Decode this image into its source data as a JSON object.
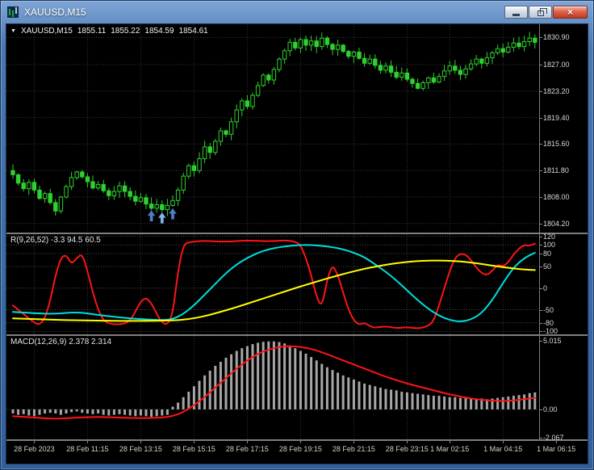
{
  "window": {
    "title": "XAUUSD,M15",
    "controls": {
      "minimize": "minimize",
      "restore": "restore",
      "close": "close"
    }
  },
  "main_chart": {
    "dropdown_marker": "▼",
    "symbol_label": "XAUUSD,M15",
    "open": "1855.11",
    "high": "1855.22",
    "low": "1854.59",
    "close": "1854.61",
    "price_axis_labels": [
      "1830.90",
      "1827.00",
      "1823.20",
      "1819.40",
      "1815.60",
      "1811.80",
      "1808.00",
      "1804.20"
    ]
  },
  "indicator_panel": {
    "label": "R(9,26,52) -3.3 94.5 60.5",
    "axis_labels": [
      "120",
      "100",
      "80",
      "50",
      "0",
      "-50",
      "-80",
      "-100"
    ]
  },
  "macd_panel": {
    "label": "MACD(12,26,9) 2.378 2.314",
    "axis_labels": [
      "5.015",
      "0.00",
      "-2.067"
    ]
  },
  "time_axis": {
    "labels": [
      {
        "label": "28 Feb 2023",
        "i": 4
      },
      {
        "label": "28 Feb 11:15",
        "i": 14
      },
      {
        "label": "28 Feb 13:15",
        "i": 24
      },
      {
        "label": "28 Feb 15:15",
        "i": 34
      },
      {
        "label": "28 Feb 17:15",
        "i": 44
      },
      {
        "label": "28 Feb 19:15",
        "i": 54
      },
      {
        "label": "28 Feb 21:15",
        "i": 64
      },
      {
        "label": "28 Feb 23:15",
        "i": 74
      },
      {
        "label": "1 Mar 02:15",
        "i": 82
      },
      {
        "label": "1 Mar 04:15",
        "i": 92
      },
      {
        "label": "1 Mar 06:15",
        "i": 102
      }
    ]
  },
  "colors": {
    "background": "#000000",
    "candle": "#2fd12f",
    "grid": "#383838",
    "level": "#4a4a4a",
    "separator": "#7e7e7e",
    "axis_text": "#d9d9d9",
    "histogram": "#a6a6a6",
    "signal": "#ff1414"
  },
  "chart_data": [
    {
      "type": "candlestick",
      "title": "XAUUSD M15 price",
      "ylim": [
        1802.9,
        1832.8
      ],
      "first_open": 1811.8,
      "closes": [
        1811.2,
        1810.0,
        1809.2,
        1810.1,
        1809.0,
        1807.8,
        1808.5,
        1807.2,
        1806.0,
        1808.0,
        1809.5,
        1810.8,
        1811.6,
        1810.9,
        1810.2,
        1809.3,
        1809.8,
        1808.9,
        1808.2,
        1808.8,
        1809.6,
        1808.8,
        1808.1,
        1807.4,
        1807.9,
        1807.0,
        1806.4,
        1806.9,
        1806.2,
        1806.8,
        1807.5,
        1809.0,
        1811.0,
        1812.5,
        1811.8,
        1813.5,
        1815.2,
        1814.4,
        1816.0,
        1817.5,
        1817.0,
        1818.8,
        1820.5,
        1821.8,
        1821.0,
        1822.6,
        1824.0,
        1825.5,
        1824.8,
        1826.3,
        1827.8,
        1829.0,
        1830.2,
        1829.4,
        1830.6,
        1829.8,
        1830.4,
        1829.6,
        1830.8,
        1829.9,
        1829.2,
        1829.8,
        1828.9,
        1828.2,
        1828.8,
        1827.9,
        1827.2,
        1827.8,
        1826.9,
        1826.2,
        1826.8,
        1825.9,
        1825.2,
        1825.8,
        1824.9,
        1824.3,
        1823.6,
        1824.4,
        1825.1,
        1824.5,
        1825.3,
        1826.1,
        1826.8,
        1826.2,
        1825.6,
        1826.4,
        1827.1,
        1827.8,
        1827.2,
        1828.0,
        1828.7,
        1829.3,
        1828.8,
        1829.5,
        1830.1,
        1829.6,
        1830.3,
        1830.8,
        1830.2
      ],
      "markers": [
        {
          "shape": "up-arrow",
          "candle_index": 26,
          "price": 1805.3,
          "color": "#4f7fc0"
        },
        {
          "shape": "up-arrow",
          "candle_index": 28,
          "price": 1805.0,
          "color": "#8ab4e8"
        },
        {
          "shape": "up-arrow",
          "candle_index": 30,
          "price": 1805.6,
          "color": "#4f7fc0"
        }
      ]
    },
    {
      "type": "line",
      "title": "R(9,26,52)",
      "current_values": "-3.3 94.5 60.5",
      "ylim": [
        -107,
        125
      ],
      "levels": [
        120,
        100,
        80,
        50,
        0,
        -50,
        -80,
        -100
      ],
      "series": [
        {
          "name": "r-fast",
          "color": "#ff1414",
          "width": 2,
          "points": [
            [
              0,
              -40
            ],
            [
              2,
              -60
            ],
            [
              4,
              -80
            ],
            [
              5,
              -85
            ],
            [
              6,
              -70
            ],
            [
              7,
              -30
            ],
            [
              8,
              30
            ],
            [
              9,
              70
            ],
            [
              10,
              78
            ],
            [
              11,
              55
            ],
            [
              12,
              70
            ],
            [
              13,
              80
            ],
            [
              14,
              40
            ],
            [
              15,
              -10
            ],
            [
              16,
              -50
            ],
            [
              17,
              -75
            ],
            [
              18,
              -82
            ],
            [
              20,
              -85
            ],
            [
              22,
              -78
            ],
            [
              24,
              -30
            ],
            [
              25,
              -22
            ],
            [
              26,
              -35
            ],
            [
              27,
              -60
            ],
            [
              28,
              -80
            ],
            [
              29,
              -85
            ],
            [
              30,
              -60
            ],
            [
              31,
              40
            ],
            [
              32,
              100
            ],
            [
              33,
              107
            ],
            [
              36,
              110
            ],
            [
              40,
              107
            ],
            [
              44,
              111
            ],
            [
              48,
              108
            ],
            [
              51,
              111
            ],
            [
              53,
              108
            ],
            [
              54,
              100
            ],
            [
              55,
              70
            ],
            [
              56,
              30
            ],
            [
              57,
              -20
            ],
            [
              58,
              -45
            ],
            [
              59,
              20
            ],
            [
              60,
              55
            ],
            [
              61,
              30
            ],
            [
              62,
              -10
            ],
            [
              63,
              -50
            ],
            [
              64,
              -75
            ],
            [
              65,
              -85
            ],
            [
              66,
              -80
            ],
            [
              67,
              -88
            ],
            [
              68,
              -92
            ],
            [
              70,
              -88
            ],
            [
              72,
              -93
            ],
            [
              74,
              -90
            ],
            [
              76,
              -94
            ],
            [
              78,
              -88
            ],
            [
              79,
              -75
            ],
            [
              80,
              -40
            ],
            [
              81,
              0
            ],
            [
              82,
              40
            ],
            [
              83,
              70
            ],
            [
              84,
              80
            ],
            [
              85,
              78
            ],
            [
              86,
              65
            ],
            [
              87,
              48
            ],
            [
              88,
              35
            ],
            [
              89,
              30
            ],
            [
              90,
              40
            ],
            [
              91,
              55
            ],
            [
              92,
              50
            ],
            [
              93,
              60
            ],
            [
              94,
              78
            ],
            [
              95,
              92
            ],
            [
              96,
              100
            ],
            [
              97,
              98
            ],
            [
              98,
              103
            ]
          ]
        },
        {
          "name": "r-mid",
          "color": "#00dddd",
          "width": 2,
          "points": [
            [
              0,
              -55
            ],
            [
              4,
              -58
            ],
            [
              8,
              -60
            ],
            [
              12,
              -55
            ],
            [
              16,
              -62
            ],
            [
              20,
              -68
            ],
            [
              24,
              -72
            ],
            [
              28,
              -74
            ],
            [
              30,
              -72
            ],
            [
              32,
              -60
            ],
            [
              34,
              -40
            ],
            [
              36,
              -15
            ],
            [
              38,
              10
            ],
            [
              40,
              35
            ],
            [
              42,
              55
            ],
            [
              44,
              70
            ],
            [
              46,
              82
            ],
            [
              48,
              90
            ],
            [
              50,
              95
            ],
            [
              52,
              98
            ],
            [
              54,
              100
            ],
            [
              56,
              100
            ],
            [
              58,
              98
            ],
            [
              60,
              95
            ],
            [
              62,
              90
            ],
            [
              64,
              82
            ],
            [
              66,
              72
            ],
            [
              68,
              55
            ],
            [
              70,
              38
            ],
            [
              72,
              18
            ],
            [
              74,
              -5
            ],
            [
              76,
              -28
            ],
            [
              78,
              -48
            ],
            [
              80,
              -64
            ],
            [
              82,
              -74
            ],
            [
              84,
              -78
            ],
            [
              86,
              -73
            ],
            [
              88,
              -58
            ],
            [
              90,
              -28
            ],
            [
              92,
              12
            ],
            [
              94,
              48
            ],
            [
              96,
              70
            ],
            [
              98,
              82
            ]
          ]
        },
        {
          "name": "r-slow",
          "color": "#ffff00",
          "width": 2,
          "points": [
            [
              0,
              -70
            ],
            [
              5,
              -72
            ],
            [
              10,
              -74
            ],
            [
              15,
              -75
            ],
            [
              20,
              -76
            ],
            [
              25,
              -76
            ],
            [
              30,
              -75
            ],
            [
              33,
              -72
            ],
            [
              36,
              -65
            ],
            [
              39,
              -55
            ],
            [
              42,
              -44
            ],
            [
              45,
              -32
            ],
            [
              48,
              -20
            ],
            [
              51,
              -8
            ],
            [
              54,
              4
            ],
            [
              57,
              15
            ],
            [
              60,
              26
            ],
            [
              63,
              36
            ],
            [
              66,
              45
            ],
            [
              69,
              52
            ],
            [
              72,
              58
            ],
            [
              75,
              62
            ],
            [
              78,
              64
            ],
            [
              81,
              64
            ],
            [
              84,
              62
            ],
            [
              87,
              58
            ],
            [
              90,
              52
            ],
            [
              93,
              47
            ],
            [
              96,
              43
            ],
            [
              98,
              42
            ]
          ]
        }
      ]
    },
    {
      "type": "macd",
      "title": "MACD(12,26,9)",
      "current_values": "2.378 2.314",
      "ylim": [
        -2.2,
        5.4
      ],
      "levels": [
        0
      ],
      "histogram": [
        -0.3,
        -0.4,
        -0.35,
        -0.45,
        -0.5,
        -0.4,
        -0.3,
        -0.25,
        -0.3,
        -0.4,
        -0.3,
        -0.2,
        -0.15,
        -0.25,
        -0.3,
        -0.35,
        -0.3,
        -0.4,
        -0.45,
        -0.4,
        -0.35,
        -0.4,
        -0.45,
        -0.5,
        -0.45,
        -0.5,
        -0.55,
        -0.5,
        -0.45,
        -0.4,
        0.2,
        0.5,
        0.9,
        1.3,
        1.7,
        2.1,
        2.5,
        2.85,
        3.2,
        3.5,
        3.8,
        4.05,
        4.3,
        4.5,
        4.65,
        4.8,
        4.9,
        4.97,
        5.0,
        5.0,
        4.95,
        4.85,
        4.7,
        4.5,
        4.3,
        4.1,
        3.85,
        3.6,
        3.35,
        3.1,
        2.9,
        2.7,
        2.5,
        2.35,
        2.2,
        2.05,
        1.9,
        1.8,
        1.7,
        1.6,
        1.5,
        1.45,
        1.4,
        1.3,
        1.25,
        1.2,
        1.15,
        1.1,
        1.05,
        1.0,
        1.0,
        0.95,
        0.9,
        0.9,
        0.85,
        0.85,
        0.8,
        0.8,
        0.8,
        0.75,
        0.8,
        0.85,
        0.9,
        0.95,
        1.0,
        1.05,
        1.1,
        1.2,
        1.25
      ],
      "signal": [
        [
          0,
          -0.5
        ],
        [
          4,
          -0.6
        ],
        [
          8,
          -0.7
        ],
        [
          12,
          -0.6
        ],
        [
          16,
          -0.55
        ],
        [
          20,
          -0.6
        ],
        [
          24,
          -0.65
        ],
        [
          28,
          -0.6
        ],
        [
          30,
          -0.5
        ],
        [
          32,
          -0.2
        ],
        [
          34,
          0.3
        ],
        [
          36,
          0.9
        ],
        [
          38,
          1.6
        ],
        [
          40,
          2.3
        ],
        [
          42,
          3.0
        ],
        [
          44,
          3.6
        ],
        [
          46,
          4.1
        ],
        [
          48,
          4.4
        ],
        [
          50,
          4.6
        ],
        [
          52,
          4.65
        ],
        [
          54,
          4.6
        ],
        [
          56,
          4.45
        ],
        [
          58,
          4.2
        ],
        [
          60,
          3.9
        ],
        [
          62,
          3.6
        ],
        [
          64,
          3.3
        ],
        [
          66,
          3.0
        ],
        [
          68,
          2.7
        ],
        [
          70,
          2.4
        ],
        [
          72,
          2.15
        ],
        [
          74,
          1.9
        ],
        [
          76,
          1.7
        ],
        [
          78,
          1.5
        ],
        [
          80,
          1.3
        ],
        [
          82,
          1.1
        ],
        [
          84,
          0.95
        ],
        [
          86,
          0.8
        ],
        [
          88,
          0.7
        ],
        [
          90,
          0.65
        ],
        [
          92,
          0.6
        ],
        [
          94,
          0.65
        ],
        [
          96,
          0.75
        ],
        [
          98,
          0.85
        ]
      ]
    }
  ]
}
